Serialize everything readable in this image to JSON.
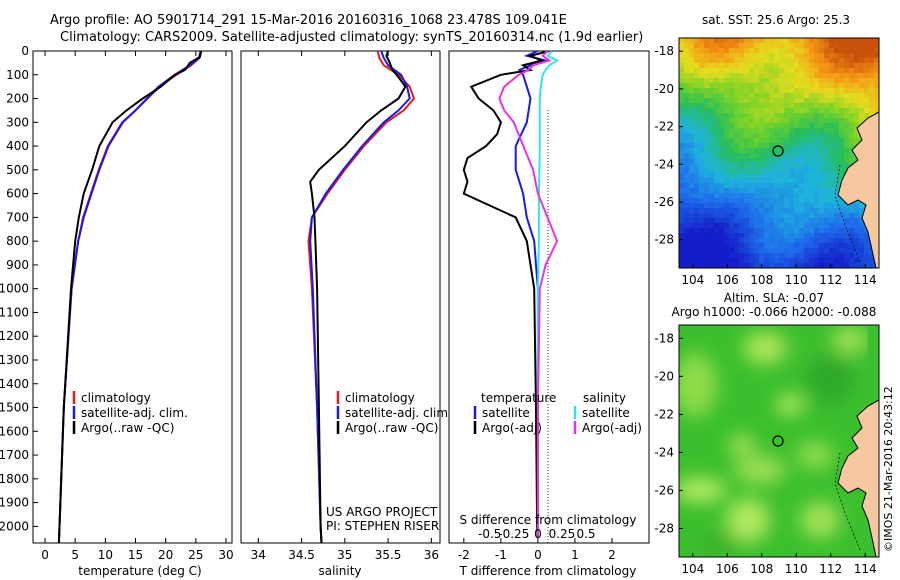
{
  "header": {
    "line1": "Argo profile: AO 5901714_291 15-Mar-2016 20160316_1068 23.478S 109.041E",
    "line2": "Climatology: CARS2009. Satellite-adjusted climatology: synTS_20160314.nc (1.9d earlier)"
  },
  "colors": {
    "climatology": "#e41a1c",
    "satellite": "#1a1ae6",
    "argo": "#000000",
    "sal_satellite": "#33e6e6",
    "sal_argo": "#e633e6"
  },
  "chart_data": [
    {
      "id": "temperature",
      "type": "line",
      "xlabel": "temperature (deg C)",
      "ylabel": "",
      "xlim": [
        -2,
        31
      ],
      "ylim": [
        2070,
        0
      ],
      "xticks": [
        "0",
        "5",
        "10",
        "15",
        "20",
        "25",
        "30"
      ],
      "xtick_values": [
        0,
        5,
        10,
        15,
        20,
        25,
        30
      ],
      "yticks": [
        "0",
        "100",
        "200",
        "300",
        "400",
        "500",
        "600",
        "700",
        "800",
        "900",
        "1000",
        "1100",
        "1200",
        "1300",
        "1400",
        "1500",
        "1600",
        "1700",
        "1800",
        "1900",
        "2000"
      ],
      "ytick_values": [
        0,
        100,
        200,
        300,
        400,
        500,
        600,
        700,
        800,
        900,
        1000,
        1100,
        1200,
        1300,
        1400,
        1500,
        1600,
        1700,
        1800,
        1900,
        2000
      ],
      "legend": [
        "climatology",
        "satellite-adj. clim.",
        "Argo(..raw -QC)"
      ],
      "series": [
        {
          "name": "climatology",
          "depth": [
            0,
            30,
            60,
            100,
            150,
            200,
            250,
            300,
            400,
            500,
            600,
            700,
            800,
            1000,
            1500,
            2000,
            2070
          ],
          "values": [
            25.8,
            25.6,
            24.2,
            21.8,
            19.0,
            17.0,
            15.0,
            12.8,
            10.4,
            8.9,
            7.6,
            6.3,
            5.5,
            4.4,
            3.1,
            2.4,
            2.3
          ]
        },
        {
          "name": "satellite-adj. clim.",
          "depth": [
            0,
            30,
            60,
            100,
            150,
            200,
            250,
            300,
            400,
            500,
            600,
            700,
            800,
            1000,
            1500,
            2000,
            2070
          ],
          "values": [
            25.8,
            25.5,
            24.0,
            21.5,
            18.8,
            16.9,
            15.0,
            12.9,
            10.5,
            9.0,
            7.7,
            6.4,
            5.5,
            4.4,
            3.1,
            2.4,
            2.3
          ]
        },
        {
          "name": "Argo(..raw -QC)",
          "depth": [
            0,
            25,
            50,
            80,
            100,
            150,
            200,
            250,
            300,
            400,
            500,
            600,
            700,
            800,
            1000,
            1500,
            2000,
            2070
          ],
          "values": [
            25.9,
            25.7,
            24.0,
            23.2,
            21.5,
            19.2,
            16.2,
            13.5,
            11.2,
            9.0,
            7.8,
            6.4,
            5.6,
            5.0,
            4.3,
            3.1,
            2.4,
            2.3
          ]
        }
      ]
    },
    {
      "id": "salinity",
      "type": "line",
      "xlabel": "salinity",
      "ylabel": "",
      "xlim": [
        33.8,
        36.1
      ],
      "ylim": [
        2070,
        0
      ],
      "xticks": [
        "34",
        "34.5",
        "35",
        "35.5",
        "36"
      ],
      "xtick_values": [
        34,
        34.5,
        35,
        35.5,
        36
      ],
      "legend": [
        "climatology",
        "satellite-adj. clim.",
        "Argo(..raw -QC)"
      ],
      "annotation": [
        "US ARGO PROJECT",
        "PI: STEPHEN RISER"
      ],
      "series": [
        {
          "name": "climatology",
          "depth": [
            0,
            30,
            60,
            100,
            150,
            200,
            250,
            300,
            400,
            500,
            600,
            700,
            800,
            1000,
            1500,
            2000,
            2070
          ],
          "values": [
            35.38,
            35.4,
            35.45,
            35.62,
            35.75,
            35.8,
            35.68,
            35.48,
            35.22,
            35.0,
            34.8,
            34.62,
            34.58,
            34.62,
            34.68,
            34.72,
            34.73
          ]
        },
        {
          "name": "satellite-adj. clim.",
          "depth": [
            0,
            30,
            60,
            100,
            150,
            200,
            250,
            300,
            400,
            500,
            600,
            700,
            800,
            1000,
            1500,
            2000,
            2070
          ],
          "values": [
            35.42,
            35.45,
            35.5,
            35.65,
            35.72,
            35.75,
            35.62,
            35.45,
            35.2,
            34.98,
            34.78,
            34.62,
            34.6,
            34.63,
            34.68,
            34.72,
            34.73
          ]
        },
        {
          "name": "Argo(..raw -QC)",
          "depth": [
            0,
            20,
            50,
            80,
            100,
            150,
            200,
            250,
            300,
            400,
            500,
            550,
            600,
            700,
            800,
            1000,
            1500,
            2000,
            2070
          ],
          "values": [
            35.5,
            35.48,
            35.52,
            35.55,
            35.6,
            35.7,
            35.62,
            35.42,
            35.25,
            35.0,
            34.7,
            34.6,
            34.62,
            34.65,
            34.66,
            34.68,
            34.7,
            34.72,
            34.73
          ]
        }
      ]
    },
    {
      "id": "difference",
      "type": "line",
      "xlabel": "T difference from climatology",
      "xlabel_top": "S difference from climatology",
      "xlim": [
        -2.4,
        3.0
      ],
      "ylim": [
        2070,
        0
      ],
      "xticks": [
        "-2",
        "-1",
        "0",
        "1",
        "2"
      ],
      "xtick_values": [
        -2,
        -1,
        0,
        1,
        2
      ],
      "sticks": [
        "-0.5",
        "-0.25",
        "0",
        "0.25",
        "0.5"
      ],
      "stick_values": [
        -0.5,
        -0.25,
        0,
        0.25,
        0.5
      ],
      "legend_temperature_title": "temperature",
      "legend_salinity_title": "salinity",
      "legend_temperature": [
        "satellite",
        "Argo(-adj)"
      ],
      "legend_salinity": [
        "satellite",
        "Argo(-adj)"
      ],
      "series": [
        {
          "name": "T satellite",
          "units": "deg C",
          "depth": [
            0,
            20,
            40,
            60,
            80,
            100,
            150,
            200,
            300,
            400,
            500,
            600,
            700,
            800,
            900,
            1000,
            1500,
            2000,
            2050
          ],
          "values": [
            0.0,
            -0.3,
            0.2,
            -0.2,
            -0.5,
            -0.4,
            -0.3,
            -0.2,
            -0.3,
            -0.6,
            -0.6,
            -0.4,
            -0.3,
            -0.1,
            -0.05,
            0.0,
            0.0,
            0.0,
            0.0
          ]
        },
        {
          "name": "T Argo(-adj)",
          "units": "deg C",
          "depth": [
            0,
            20,
            40,
            60,
            80,
            100,
            150,
            200,
            250,
            300,
            350,
            400,
            450,
            500,
            550,
            600,
            650,
            700,
            800,
            900,
            1000,
            1500,
            2000,
            2050
          ],
          "values": [
            0.3,
            -0.2,
            0.1,
            -0.4,
            -0.2,
            -1.0,
            -1.8,
            -1.6,
            -1.2,
            -1.0,
            -1.1,
            -1.4,
            -1.9,
            -2.0,
            -1.9,
            -2.0,
            -1.3,
            -0.6,
            -0.3,
            -0.2,
            -0.1,
            -0.05,
            -0.02,
            0.0
          ]
        },
        {
          "name": "S satellite",
          "units": "psu",
          "depth": [
            0,
            20,
            40,
            60,
            80,
            100,
            150,
            200,
            300,
            400,
            600,
            800,
            1000,
            1500,
            2000,
            2050
          ],
          "values": [
            0.15,
            0.1,
            0.2,
            0.12,
            0.08,
            0.05,
            0.03,
            0.02,
            0.02,
            0.02,
            0.01,
            0.01,
            0.0,
            0.0,
            0.0,
            0.0
          ]
        },
        {
          "name": "S Argo(-adj)",
          "units": "psu",
          "depth": [
            0,
            20,
            40,
            60,
            80,
            100,
            150,
            200,
            250,
            300,
            400,
            500,
            600,
            700,
            800,
            900,
            1000,
            1500,
            2000,
            2050
          ],
          "values": [
            0.1,
            0.05,
            0.12,
            -0.05,
            -0.1,
            -0.2,
            -0.35,
            -0.4,
            -0.35,
            -0.25,
            -0.15,
            -0.05,
            0.0,
            0.1,
            0.2,
            0.08,
            0.02,
            0.0,
            0.0,
            0.0
          ]
        }
      ]
    },
    {
      "id": "sst-map",
      "type": "heatmap",
      "title": "sat. SST: 25.6  Argo: 25.3",
      "xticks": [
        "104",
        "106",
        "108",
        "110",
        "112",
        "114"
      ],
      "xtick_values": [
        104,
        106,
        108,
        110,
        112,
        114
      ],
      "yticks": [
        "-18",
        "-20",
        "-22",
        "-24",
        "-26",
        "-28"
      ],
      "ytick_values": [
        -18,
        -20,
        -22,
        -24,
        -26,
        -28
      ],
      "xlim": [
        103.2,
        114.8
      ],
      "ylim": [
        -29.5,
        -17.3
      ],
      "float_position": [
        109.041,
        -23.478
      ]
    },
    {
      "id": "sla-map",
      "type": "heatmap",
      "title_line1": "Altim. SLA: -0.07",
      "title_line2": "Argo h1000: -0.066  h2000: -0.088",
      "xticks": [
        "104",
        "106",
        "108",
        "110",
        "112",
        "114"
      ],
      "xtick_values": [
        104,
        106,
        108,
        110,
        112,
        114
      ],
      "yticks": [
        "-18",
        "-20",
        "-22",
        "-24",
        "-26",
        "-28"
      ],
      "ytick_values": [
        -18,
        -20,
        -22,
        -24,
        -26,
        -28
      ],
      "xlim": [
        103.2,
        114.8
      ],
      "ylim": [
        -29.5,
        -17.3
      ],
      "float_position": [
        109.041,
        -23.478
      ],
      "credit": "©IMOS 21-Mar-2016 20:43:12"
    }
  ]
}
